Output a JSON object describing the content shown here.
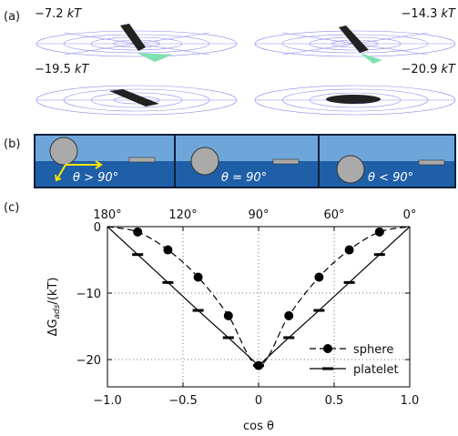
{
  "panel_labels": [
    "(a)",
    "(b)",
    "(c)"
  ],
  "panel_a": {
    "labels": [
      {
        "energy": "−7.2",
        "unit": "kT"
      },
      {
        "energy": "−14.3",
        "unit": "kT"
      },
      {
        "energy": "−19.5",
        "unit": "kT"
      },
      {
        "energy": "−20.9",
        "unit": "kT"
      }
    ]
  },
  "panel_b": {
    "labels": [
      "θ > 90°",
      "θ = 90°",
      "θ < 90°"
    ]
  },
  "chart_data": {
    "type": "line",
    "x_label": "cos θ",
    "y_label": [
      "ΔG",
      "ads",
      "/(kT)"
    ],
    "x": [
      -1,
      -0.8,
      -0.6,
      -0.4,
      -0.2,
      0,
      0.2,
      0.4,
      0.6,
      0.8,
      1
    ],
    "series": [
      {
        "name": "sphere",
        "color": "#000000",
        "line_style": "dashed",
        "marker": "circle",
        "values": [
          0,
          -0.8,
          -3.5,
          -7.6,
          -13.4,
          -20.9,
          -13.4,
          -7.6,
          -3.5,
          -0.8,
          0
        ]
      },
      {
        "name": "platelet",
        "color": "#000000",
        "line_style": "solid",
        "marker": "dash",
        "values": [
          0,
          -4.2,
          -8.4,
          -12.6,
          -16.7,
          -20.9,
          -16.7,
          -12.6,
          -8.4,
          -4.2,
          0
        ]
      }
    ],
    "xlim": [
      -1,
      1
    ],
    "xticks": [
      {
        "value": -1,
        "label": "−1.0"
      },
      {
        "value": -0.5,
        "label": "−0.5"
      },
      0,
      0.5,
      {
        "value": 1,
        "label": "1.0"
      }
    ],
    "x2lim": [
      -1,
      1
    ],
    "x2ticks": [
      {
        "value": -1,
        "label": "180°"
      },
      {
        "value": -0.5,
        "label": "120°"
      },
      {
        "value": 0,
        "label": "90°"
      },
      {
        "value": 0.5,
        "label": "60°"
      },
      {
        "value": 1,
        "label": "0°"
      }
    ],
    "ylim": [
      -24.1,
      0
    ],
    "yticks": [
      0,
      {
        "value": -10,
        "label": "−10"
      },
      {
        "value": -20,
        "label": "−20"
      }
    ],
    "grid": true,
    "legend": "lower right"
  }
}
